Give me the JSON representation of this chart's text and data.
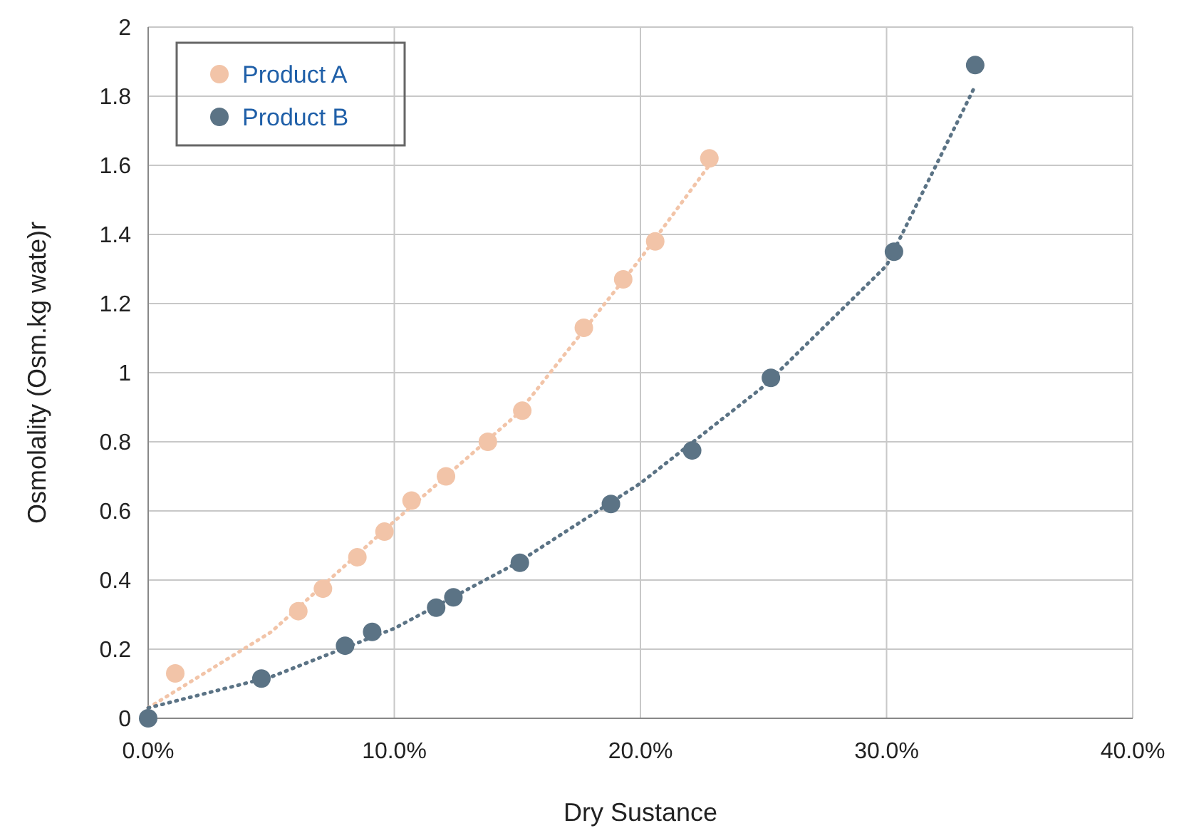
{
  "chart_data": {
    "type": "scatter",
    "xlabel": "Dry Sustance",
    "ylabel": "Osmolality (Osm.kg wate)r",
    "xlim": [
      0,
      40
    ],
    "xticks": [
      {
        "value": 0,
        "label": "0.0%"
      },
      {
        "value": 10,
        "label": "10.0%"
      },
      {
        "value": 20,
        "label": "20.0%"
      },
      {
        "value": 30,
        "label": "30.0%"
      },
      {
        "value": 40,
        "label": "40.0%"
      }
    ],
    "ylim": [
      0,
      2
    ],
    "yticks": [
      0,
      0.2,
      0.4,
      0.6,
      0.8,
      1,
      1.2,
      1.4,
      1.6,
      1.8,
      2
    ],
    "grid": true,
    "legend": "top left",
    "marker": "circle",
    "series": [
      {
        "name": "Product A",
        "color": "#f2c4a8",
        "x": [
          1.1,
          6.1,
          7.1,
          8.5,
          9.6,
          10.7,
          12.1,
          13.8,
          15.2,
          17.7,
          19.3,
          20.6,
          22.8
        ],
        "values": [
          0.13,
          0.31,
          0.375,
          0.466,
          0.54,
          0.63,
          0.7,
          0.8,
          0.89,
          1.13,
          1.27,
          1.38,
          1.62
        ]
      },
      {
        "name": "Product B",
        "color": "#5b7385",
        "x": [
          0,
          4.6,
          8,
          9.1,
          11.7,
          12.4,
          15.1,
          18.8,
          22.1,
          25.3,
          30.3,
          33.6
        ],
        "values": [
          0,
          0.115,
          0.21,
          0.25,
          0.32,
          0.35,
          0.45,
          0.62,
          0.775,
          0.985,
          1.35,
          1.89
        ]
      },
      {
        "type": "line",
        "marker": "none",
        "line_style": "dotted",
        "color": "#f2c4a8",
        "x": [
          0,
          5,
          10,
          15,
          20,
          23
        ],
        "values": [
          0.03,
          0.25,
          0.57,
          0.88,
          1.33,
          1.62
        ]
      },
      {
        "type": "line",
        "marker": "none",
        "line_style": "dotted",
        "color": "#5b7385",
        "x": [
          0,
          5,
          10,
          15,
          20,
          25,
          30,
          33.6
        ],
        "values": [
          0.03,
          0.12,
          0.26,
          0.45,
          0.68,
          0.96,
          1.31,
          1.83
        ]
      }
    ]
  }
}
